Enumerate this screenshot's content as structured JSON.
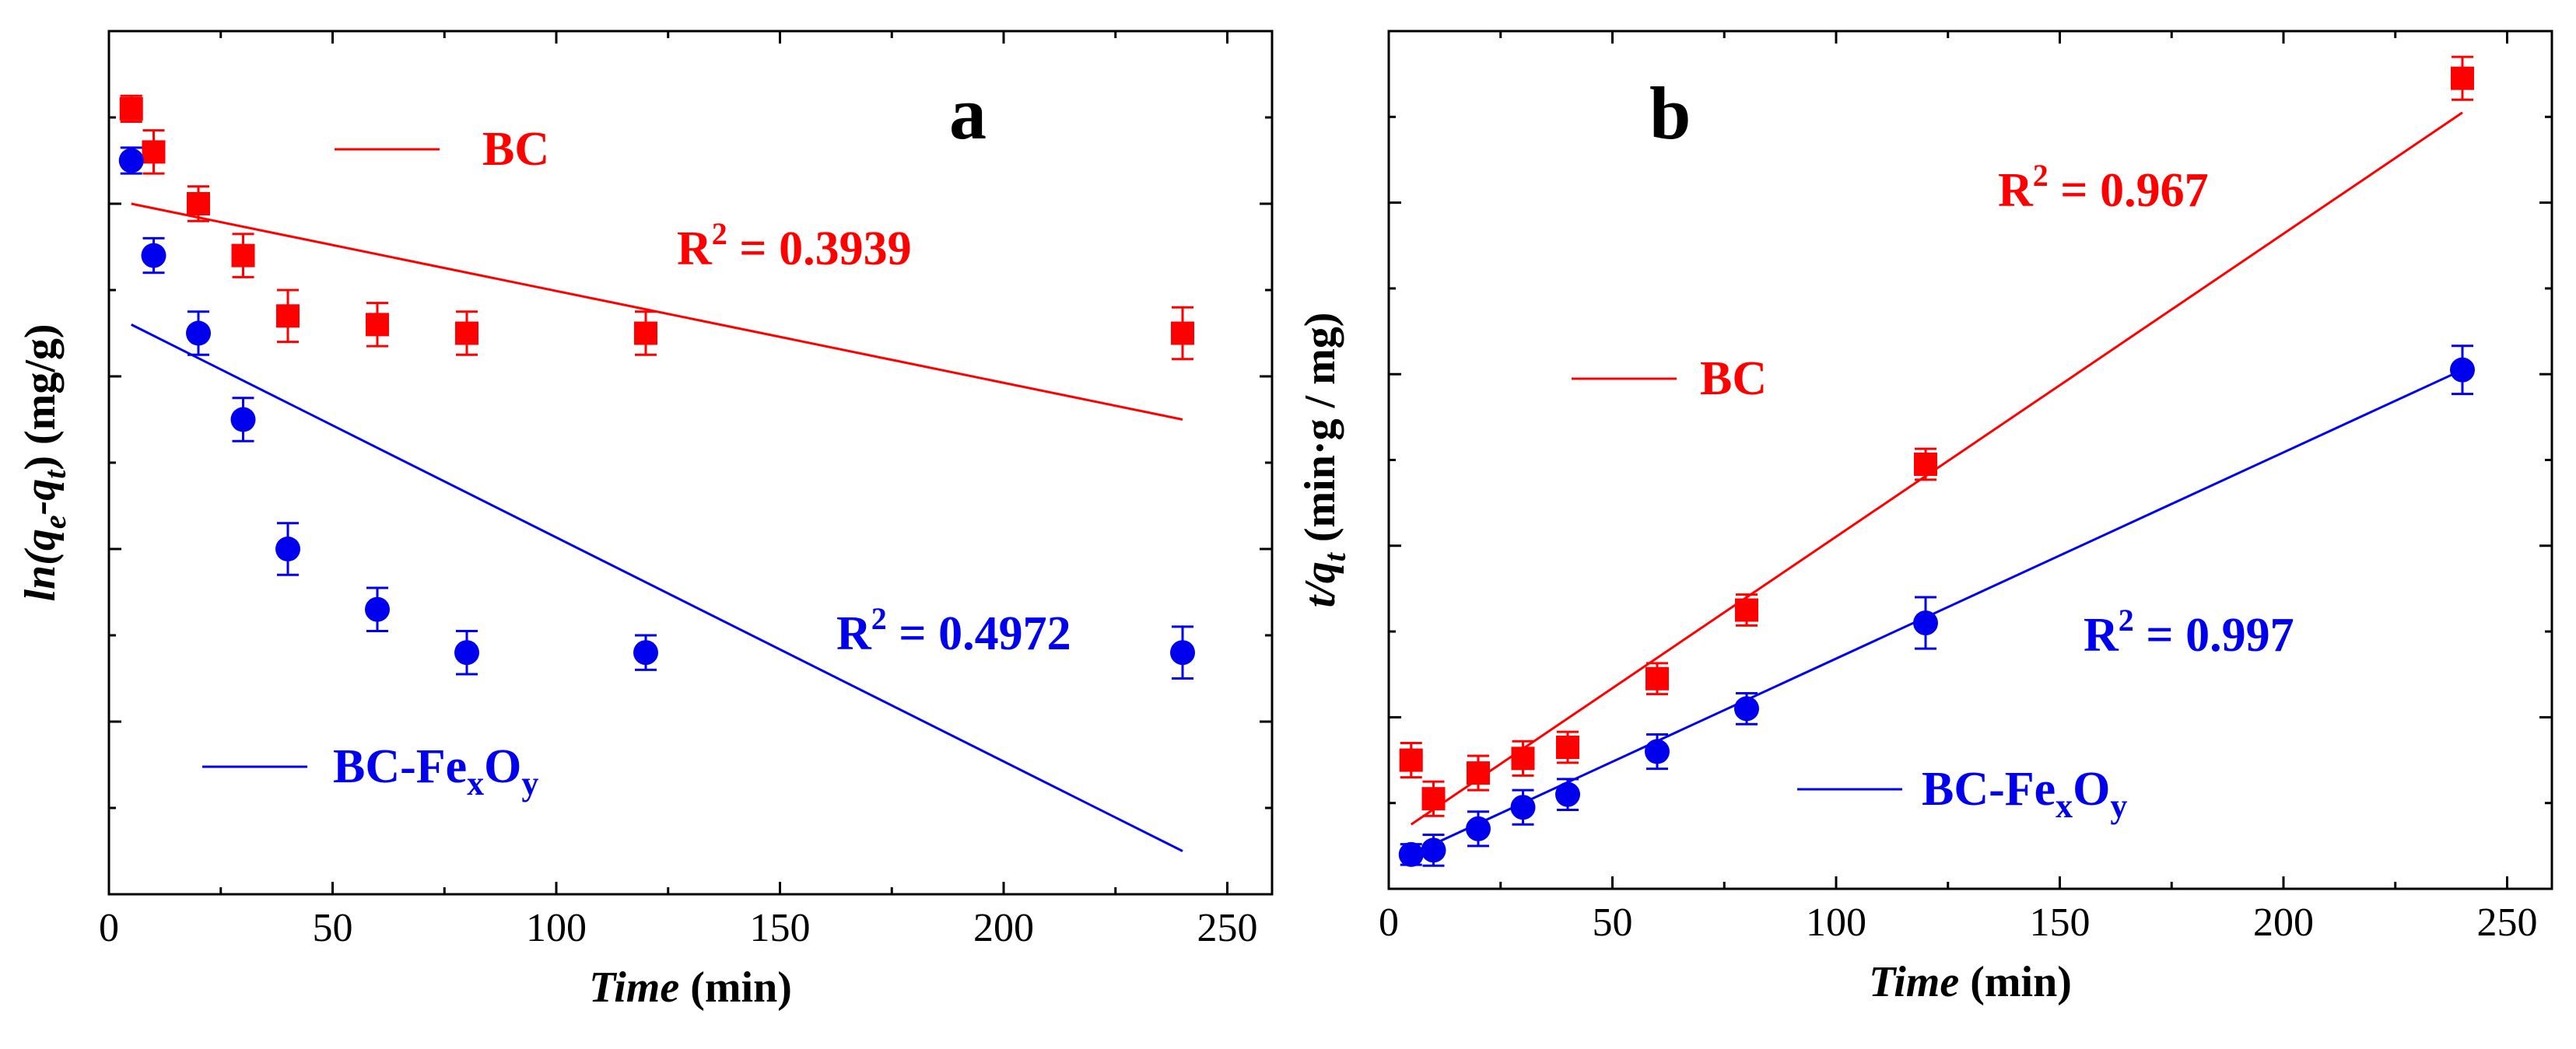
{
  "colors": {
    "bc": "#ff0000",
    "bcfe": "#0000ee",
    "axis": "#000000"
  },
  "chart_data": [
    {
      "panel": "a",
      "type": "scatter",
      "title": "",
      "xlabel": "Time (min)",
      "xlabel_italic": "Time",
      "xlabel_unit": "(min)",
      "ylabel_parts": [
        "ln(q",
        "e",
        "-q",
        "t",
        ") (mg/g)"
      ],
      "xlim": [
        0,
        260
      ],
      "ylim": [
        0,
        1
      ],
      "y_tick_labels_shown": false,
      "x_ticks": [
        0,
        50,
        100,
        150,
        200,
        250
      ],
      "series": [
        {
          "name": "BC",
          "marker": "square",
          "color_key": "bc",
          "x": [
            5,
            10,
            20,
            30,
            40,
            60,
            80,
            120,
            240
          ],
          "y": [
            0.91,
            0.86,
            0.8,
            0.74,
            0.67,
            0.66,
            0.65,
            0.65,
            0.65
          ],
          "err": [
            0.015,
            0.025,
            0.02,
            0.025,
            0.03,
            0.025,
            0.025,
            0.025,
            0.03
          ],
          "fit": {
            "x": [
              5,
              240
            ],
            "y": [
              0.8,
              0.55
            ]
          },
          "r2_label": "R",
          "r2_sup": "2",
          "r2_value": " = 0.3939"
        },
        {
          "name": "BC-FexOy",
          "name_parts": [
            "BC-Fe",
            "x",
            "O",
            "y"
          ],
          "marker": "circle",
          "color_key": "bcfe",
          "x": [
            5,
            10,
            20,
            30,
            40,
            60,
            80,
            120,
            240
          ],
          "y": [
            0.85,
            0.74,
            0.65,
            0.55,
            0.4,
            0.33,
            0.28,
            0.28,
            0.28
          ],
          "err": [
            0.015,
            0.02,
            0.025,
            0.025,
            0.03,
            0.025,
            0.025,
            0.02,
            0.03
          ],
          "fit": {
            "x": [
              5,
              240
            ],
            "y": [
              0.66,
              0.05
            ]
          },
          "r2_label": "R",
          "r2_sup": "2",
          "r2_value": " = 0.4972"
        }
      ],
      "panel_letter": "a"
    },
    {
      "panel": "b",
      "type": "scatter",
      "title": "",
      "xlabel": "Time (min)",
      "xlabel_italic": "Time",
      "xlabel_unit": "(min)",
      "ylabel_parts": [
        "t/q",
        "t",
        " (min·g / mg)"
      ],
      "xlim": [
        0,
        260
      ],
      "ylim": [
        0,
        1
      ],
      "y_tick_labels_shown": false,
      "x_ticks": [
        0,
        50,
        100,
        150,
        200,
        250
      ],
      "series": [
        {
          "name": "BC",
          "marker": "square",
          "color_key": "bc",
          "x": [
            5,
            10,
            20,
            30,
            40,
            60,
            80,
            120,
            240
          ],
          "y": [
            0.15,
            0.105,
            0.135,
            0.152,
            0.165,
            0.245,
            0.325,
            0.495,
            0.945
          ],
          "err": [
            0.02,
            0.02,
            0.02,
            0.02,
            0.018,
            0.018,
            0.018,
            0.018,
            0.025
          ],
          "fit": {
            "x": [
              5,
              240
            ],
            "y": [
              0.075,
              0.905
            ]
          },
          "r2_label": "R",
          "r2_sup": "2",
          "r2_value": " = 0.967"
        },
        {
          "name": "BC-FexOy",
          "name_parts": [
            "BC-Fe",
            "x",
            "O",
            "y"
          ],
          "marker": "circle",
          "color_key": "bcfe",
          "x": [
            5,
            10,
            20,
            30,
            40,
            60,
            80,
            120,
            240
          ],
          "y": [
            0.04,
            0.045,
            0.07,
            0.095,
            0.11,
            0.16,
            0.21,
            0.31,
            0.605
          ],
          "err": [
            0.012,
            0.018,
            0.02,
            0.02,
            0.018,
            0.02,
            0.018,
            0.03,
            0.028
          ],
          "fit": {
            "x": [
              5,
              240
            ],
            "y": [
              0.04,
              0.605
            ]
          },
          "r2_label": "R",
          "r2_sup": "2",
          "r2_value": " = 0.997"
        }
      ],
      "panel_letter": "b"
    }
  ]
}
